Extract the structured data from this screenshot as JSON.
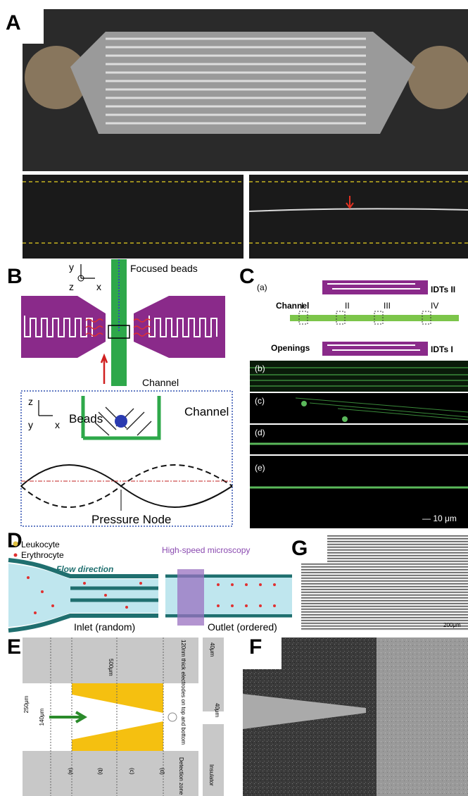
{
  "panels": {
    "A": {
      "label": "A"
    },
    "B": {
      "label": "B",
      "top": {
        "idts": "IDTs",
        "y": "y",
        "z": "z",
        "x": "x",
        "focused": "Focused beads",
        "channel": "Channel"
      },
      "bottom": {
        "z": "z",
        "y": "y",
        "x": "x",
        "beads": "Beads",
        "channel": "Channel",
        "node": "Pressure Node"
      }
    },
    "C": {
      "label": "C",
      "a": "(a)",
      "channel": "Channel",
      "idts2": "IDTs II",
      "zones": [
        "I",
        "II",
        "III",
        "IV"
      ],
      "openings": "Openings",
      "idts1": "IDTs I",
      "strips": [
        "(b)",
        "(c)",
        "(d)",
        "(e)"
      ],
      "scale": "— 10 μm"
    },
    "D": {
      "label": "D",
      "leukocyte": "Leukocyte",
      "erythrocyte": "Erythrocyte",
      "microscopy": "High-speed microscopy",
      "flow": "Flow direction",
      "inlet": "Inlet (random)",
      "outlet": "Outlet (ordered)"
    },
    "G": {
      "label": "G",
      "scale": "200μm"
    },
    "E": {
      "label": "E",
      "length": "500μm",
      "electrodes": "120nm thick electrodes on top and bottom",
      "depth_top": "40μm",
      "depth": "40μm",
      "width_outer": "250μm",
      "width_inner": "140μm",
      "sections": [
        "(a)",
        "(b)",
        "(c)",
        "(d)"
      ],
      "detection": "Detection zone",
      "insulator": "Insulator"
    },
    "F": {
      "label": "F"
    }
  }
}
